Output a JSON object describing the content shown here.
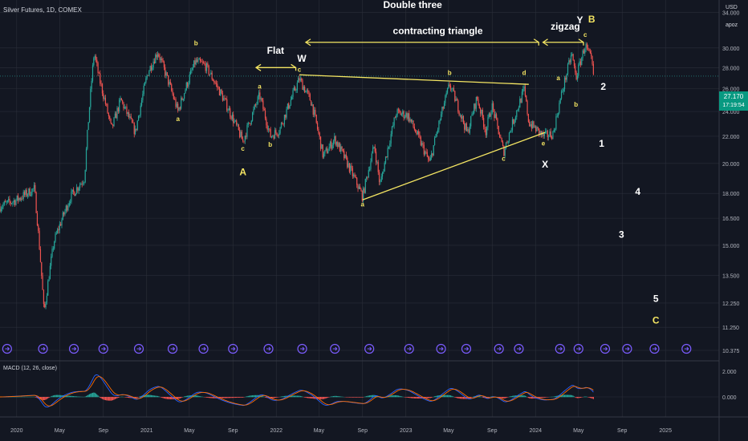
{
  "header": {
    "title": "Silver Futures, 1D, COMEX",
    "currency": "USD",
    "account": "apoz"
  },
  "last_price": {
    "value": "27.170",
    "countdown": "17:19:54",
    "color": "#089981"
  },
  "macd_label": "MACD (12, 26, close)",
  "colors": {
    "background": "#131722",
    "grid": "#2a2e39",
    "up": "#26a69a",
    "down": "#ef5350",
    "annotation": "#f5e663",
    "wave_label": "#ffffff",
    "event_icon": "#7b5cff",
    "macd_line": "#2962ff",
    "signal_line": "#ff6d00"
  },
  "chart_data": {
    "type": "candlestick",
    "title": "Silver Futures, 1D, COMEX",
    "y_axis": {
      "ticks": [
        34,
        30,
        28,
        26,
        24,
        22,
        20,
        18,
        16.5,
        15,
        13.5,
        12.25,
        11.25,
        10.375
      ],
      "tick_labels": [
        "34.000",
        "30.000",
        "28.000",
        "26.000",
        "24.000",
        "22.000",
        "20.000",
        "18.000",
        "16.500",
        "15.000",
        "13.500",
        "12.250",
        "11.250",
        "10.375"
      ],
      "scale": "log"
    },
    "x_axis": {
      "ticks": [
        "2020",
        "May",
        "Sep",
        "2021",
        "May",
        "Sep",
        "2022",
        "May",
        "Sep",
        "2023",
        "May",
        "Sep",
        "2024",
        "May",
        "Sep",
        "2025"
      ],
      "start": "2019-11-15",
      "end": "2025-06-01"
    },
    "price_path": [
      [
        "2019-11-15",
        17.2
      ],
      [
        "2020-01-01",
        17.6
      ],
      [
        "2020-02-20",
        18.3
      ],
      [
        "2020-03-18",
        11.8
      ],
      [
        "2020-04-15",
        15.2
      ],
      [
        "2020-06-01",
        17.8
      ],
      [
        "2020-07-10",
        19.0
      ],
      [
        "2020-08-06",
        29.5
      ],
      [
        "2020-08-20",
        27.0
      ],
      [
        "2020-09-24",
        22.5
      ],
      [
        "2020-10-20",
        25.0
      ],
      [
        "2020-11-30",
        22.3
      ],
      [
        "2021-01-04",
        27.5
      ],
      [
        "2021-02-01",
        29.6
      ],
      [
        "2021-03-30",
        24.0
      ],
      [
        "2021-05-18",
        28.6
      ],
      [
        "2021-06-15",
        28.2
      ],
      [
        "2021-07-30",
        25.5
      ],
      [
        "2021-09-29",
        21.6
      ],
      [
        "2021-11-15",
        25.4
      ],
      [
        "2021-12-15",
        22.0
      ],
      [
        "2022-01-10",
        22.5
      ],
      [
        "2022-03-07",
        26.9
      ],
      [
        "2022-04-10",
        24.8
      ],
      [
        "2022-05-13",
        20.5
      ],
      [
        "2022-06-15",
        21.8
      ],
      [
        "2022-09-01",
        17.8
      ],
      [
        "2022-10-04",
        21.3
      ],
      [
        "2022-10-20",
        18.5
      ],
      [
        "2022-12-05",
        23.9
      ],
      [
        "2023-01-06",
        23.7
      ],
      [
        "2023-03-09",
        20.0
      ],
      [
        "2023-05-04",
        26.4
      ],
      [
        "2023-06-23",
        22.2
      ],
      [
        "2023-07-20",
        25.2
      ],
      [
        "2023-08-14",
        22.4
      ],
      [
        "2023-08-31",
        24.5
      ],
      [
        "2023-10-03",
        20.8
      ],
      [
        "2023-11-30",
        25.9
      ],
      [
        "2023-12-13",
        23.1
      ],
      [
        "2024-01-23",
        22.0
      ],
      [
        "2024-02-20",
        22.2
      ],
      [
        "2024-03-05",
        24.2
      ],
      [
        "2024-04-12",
        29.4
      ],
      [
        "2024-04-24",
        27.0
      ],
      [
        "2024-05-20",
        30.3
      ],
      [
        "2024-06-07",
        28.6
      ],
      [
        "2024-06-12",
        27.2
      ]
    ],
    "annotations": {
      "texts": [
        "Double three",
        "contracting triangle",
        "Flat",
        "zigzag",
        "W",
        "X",
        "Y"
      ],
      "wave_letters": [
        {
          "label": "b",
          "date": "2021-05-20",
          "price": 30.3
        },
        {
          "label": "a",
          "date": "2021-03-30",
          "price": 23.2
        },
        {
          "label": "c",
          "date": "2021-09-29",
          "price": 20.9
        },
        {
          "label": "A",
          "date": "2021-09-29",
          "price": 19.2
        },
        {
          "label": "a",
          "date": "2021-11-15",
          "price": 26.0
        },
        {
          "label": "b",
          "date": "2021-12-15",
          "price": 21.2
        },
        {
          "label": "c",
          "date": "2022-03-07",
          "price": 27.6
        },
        {
          "label": "a",
          "date": "2022-09-01",
          "price": 17.2
        },
        {
          "label": "b",
          "date": "2023-05-04",
          "price": 27.3
        },
        {
          "label": "c",
          "date": "2023-10-03",
          "price": 20.2
        },
        {
          "label": "d",
          "date": "2023-11-30",
          "price": 27.3
        },
        {
          "label": "e",
          "date": "2024-01-23",
          "price": 21.3
        },
        {
          "label": "a",
          "date": "2024-03-05",
          "price": 26.8
        },
        {
          "label": "b",
          "date": "2024-04-24",
          "price": 24.4
        },
        {
          "label": "c",
          "date": "2024-05-20",
          "price": 31.2
        },
        {
          "label": "B",
          "date": "2024-06-07",
          "price": 32.8
        }
      ],
      "projection_counts": [
        {
          "label": "2",
          "date": "2024-07-10",
          "price": 25.9
        },
        {
          "label": "1",
          "date": "2024-07-05",
          "price": 21.2
        },
        {
          "label": "4",
          "date": "2024-10-15",
          "price": 17.9
        },
        {
          "label": "3",
          "date": "2024-08-30",
          "price": 15.4
        },
        {
          "label": "5",
          "date": "2024-12-05",
          "price": 12.3
        },
        {
          "label": "C",
          "date": "2024-12-05",
          "price": 11.4
        }
      ]
    },
    "macd": {
      "name": "MACD (12, 26, close)",
      "ticks": [
        2.0,
        0.0
      ],
      "tick_labels": [
        "2.000",
        "0.000"
      ]
    }
  }
}
